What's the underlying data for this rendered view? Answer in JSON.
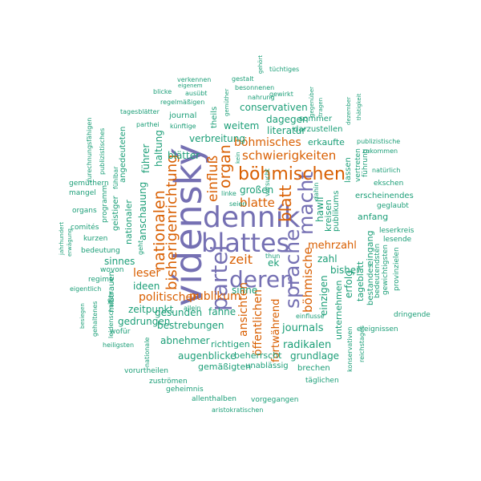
{
  "words": [
    {
      "key": "vidensky",
      "text": "vídenský"
    },
    {
      "key": "dennik",
      "text": "denník"
    },
    {
      "key": "blattes",
      "text": "blattes"
    },
    {
      "key": "partei",
      "text": "partei"
    },
    {
      "key": "deren",
      "text": "deren"
    },
    {
      "key": "sprache",
      "text": "sprache"
    },
    {
      "key": "macht",
      "text": "macht"
    },
    {
      "key": "bohmischen",
      "text": "böhmischen"
    },
    {
      "key": "blatt",
      "text": "blatt"
    },
    {
      "key": "nationalen",
      "text": "nationalen"
    },
    {
      "key": "bisherigenrichtung",
      "text": "bisherigenrichtung"
    },
    {
      "key": "organ",
      "text": "organ"
    },
    {
      "key": "einfluss",
      "text": "einfluß"
    },
    {
      "key": "bohmische",
      "text": "böhmische"
    },
    {
      "key": "schwierigkeiten",
      "text": "schwierigkeiten"
    },
    {
      "key": "bohmisches",
      "text": "böhmisches"
    },
    {
      "key": "blatte",
      "text": "blatte"
    },
    {
      "key": "zeit",
      "text": "zeit"
    },
    {
      "key": "publikum",
      "text": "publikum"
    },
    {
      "key": "politischer",
      "text": "politischer"
    },
    {
      "key": "leser",
      "text": "leser"
    },
    {
      "key": "mehrzahl",
      "text": "mehrzahl"
    },
    {
      "key": "ansichten",
      "text": "ansichten"
    },
    {
      "key": "offentlichen",
      "text": "öffentlichen"
    },
    {
      "key": "fortwahrend",
      "text": "fortwährend"
    },
    {
      "key": "journals",
      "text": "journals"
    },
    {
      "key": "radikalen",
      "text": "radikalen"
    },
    {
      "key": "grundlage",
      "text": "grundlage"
    },
    {
      "key": "weitem",
      "text": "weitem"
    },
    {
      "key": "verbreitung",
      "text": "verbreitung"
    },
    {
      "key": "literatur",
      "text": "literatur"
    },
    {
      "key": "dagegen",
      "text": "dagegen"
    },
    {
      "key": "conservativen",
      "text": "conservativen"
    },
    {
      "key": "erkaufte",
      "text": "erkaufte"
    },
    {
      "key": "darzustellen",
      "text": "darzustellen"
    },
    {
      "key": "sommer",
      "text": "sommer"
    },
    {
      "key": "grossen",
      "text": "großen"
    },
    {
      "key": "blatter",
      "text": "blätter"
    },
    {
      "key": "haltung",
      "text": "haltung"
    },
    {
      "key": "fuhrer",
      "text": "führer"
    },
    {
      "key": "anschauung",
      "text": "anschauung"
    },
    {
      "key": "sinnes",
      "text": "sinnes"
    },
    {
      "key": "ideen",
      "text": "ideen"
    },
    {
      "key": "zeitpunkt",
      "text": "zeitpunkt"
    },
    {
      "key": "gedrungen",
      "text": "gedrungen"
    },
    {
      "key": "gesunden",
      "text": "gesunden"
    },
    {
      "key": "fahne",
      "text": "fahne"
    },
    {
      "key": "bestrebungen",
      "text": "bestrebungen"
    },
    {
      "key": "abnehmer",
      "text": "abnehmer"
    },
    {
      "key": "richtigen",
      "text": "richtigen"
    },
    {
      "key": "augenblicke",
      "text": "augenblicke"
    },
    {
      "key": "beherrscht",
      "text": "beherrscht"
    },
    {
      "key": "gemassigten",
      "text": "gemäßigten"
    },
    {
      "key": "unablassig",
      "text": "unablässig"
    },
    {
      "key": "brechen",
      "text": "brechen"
    },
    {
      "key": "taglichen",
      "text": "täglichen"
    },
    {
      "key": "einfluss2",
      "text": "einflusse"
    },
    {
      "key": "sinne",
      "text": "sinne"
    },
    {
      "key": "ek",
      "text": "ek"
    },
    {
      "key": "thun",
      "text": "thun"
    },
    {
      "key": "zahl",
      "text": "zahl"
    },
    {
      "key": "bisher",
      "text": "bisher"
    },
    {
      "key": "einzigen",
      "text": "einzigen"
    },
    {
      "key": "unternehmen",
      "text": "unternehmen"
    },
    {
      "key": "erfolg",
      "text": "erfolg"
    },
    {
      "key": "hawli",
      "text": "hawlí"
    },
    {
      "key": "kreisen",
      "text": "kreisen"
    },
    {
      "key": "publikums",
      "text": "publikums"
    },
    {
      "key": "anfang",
      "text": "anfang"
    },
    {
      "key": "eingang",
      "text": "eingang"
    },
    {
      "key": "tageblatt",
      "text": "tageblatt"
    },
    {
      "key": "bestandes",
      "text": "bestandes"
    },
    {
      "key": "erscheinendes",
      "text": "erscheinendes"
    },
    {
      "key": "geglaubt",
      "text": "geglaubt"
    },
    {
      "key": "leserkreis",
      "text": "leserkreis"
    },
    {
      "key": "lesende",
      "text": "lesende"
    },
    {
      "key": "bedeutendsten",
      "text": "bedeutendsten"
    },
    {
      "key": "gewichtigsten",
      "text": "gewichtigsten"
    },
    {
      "key": "provinzielen",
      "text": "provinzielen"
    },
    {
      "key": "dringende",
      "text": "dringende"
    },
    {
      "key": "ereignissen",
      "text": "ereignissen"
    },
    {
      "key": "konservativen",
      "text": "konservativen"
    },
    {
      "key": "reichstages",
      "text": "reichstages"
    },
    {
      "key": "lassen",
      "text": "lassen"
    },
    {
      "key": "vertreten",
      "text": "vertreten"
    },
    {
      "key": "fuhrung",
      "text": "führung"
    },
    {
      "key": "zukommen",
      "text": "zukommen"
    },
    {
      "key": "naturlich",
      "text": "natürlich"
    },
    {
      "key": "ekschen",
      "text": "ekschen"
    },
    {
      "key": "publizistische",
      "text": "publizistische"
    },
    {
      "key": "dezember",
      "text": "dezember"
    },
    {
      "key": "thatigkeit",
      "text": "thätigkeit"
    },
    {
      "key": "gegenuber",
      "text": "gegenüber"
    },
    {
      "key": "tragen",
      "text": "tragen"
    },
    {
      "key": "tuchtiges",
      "text": "tüchtiges"
    },
    {
      "key": "gehort",
      "text": "gehört"
    },
    {
      "key": "gestalt",
      "text": "gestalt"
    },
    {
      "key": "besonnenen",
      "text": "besonnenen"
    },
    {
      "key": "gewirkt",
      "text": "gewirkt"
    },
    {
      "key": "nahrung",
      "text": "nahrung"
    },
    {
      "key": "verkennen",
      "text": "verkennen"
    },
    {
      "key": "eigenem",
      "text": "eigenem"
    },
    {
      "key": "blicke",
      "text": "blicke"
    },
    {
      "key": "ausubt",
      "text": "ausübt"
    },
    {
      "key": "regelmassigen",
      "text": "regelmäßigen"
    },
    {
      "key": "gemuther",
      "text": "gemüther"
    },
    {
      "key": "tagesblatter",
      "text": "tagesblätter"
    },
    {
      "key": "journal",
      "text": "journal"
    },
    {
      "key": "parthei",
      "text": "parthei"
    },
    {
      "key": "kunftige",
      "text": "künftige"
    },
    {
      "key": "theils",
      "text": "theils"
    },
    {
      "key": "zurechnungsfahigen",
      "text": "zurechnungsfähigen"
    },
    {
      "key": "publizistisches",
      "text": "publizistisches"
    },
    {
      "key": "fuhlbar",
      "text": "fühlbar"
    },
    {
      "key": "programm",
      "text": "programm"
    },
    {
      "key": "angedeuteten",
      "text": "angedeuteten"
    },
    {
      "key": "geistiger",
      "text": "geistiger"
    },
    {
      "key": "nationaler",
      "text": "nationaler"
    },
    {
      "key": "gemuthern",
      "text": "gemüthern"
    },
    {
      "key": "mangel",
      "text": "mangel"
    },
    {
      "key": "organs",
      "text": "organs"
    },
    {
      "key": "comites",
      "text": "comités"
    },
    {
      "key": "kurzen",
      "text": "kurzen"
    },
    {
      "key": "bedeutung",
      "text": "bedeutung"
    },
    {
      "key": "wovon",
      "text": "wovon"
    },
    {
      "key": "eigentlich",
      "text": "eigentlich"
    },
    {
      "key": "misstrauen",
      "text": "mißtrauen"
    },
    {
      "key": "jahrhundert",
      "text": "jahrhundert"
    },
    {
      "key": "erwagung",
      "text": "erwägung"
    },
    {
      "key": "regime",
      "text": "regime"
    },
    {
      "key": "besiegen",
      "text": "besiegen"
    },
    {
      "key": "gehaltenes",
      "text": "gehaltenes"
    },
    {
      "key": "leidenschaften",
      "text": "leidenschaften"
    },
    {
      "key": "wofur",
      "text": "wofür"
    },
    {
      "key": "heiligsten",
      "text": "heiligsten"
    },
    {
      "key": "geht",
      "text": "geht"
    },
    {
      "key": "nationale",
      "text": "nationale"
    },
    {
      "key": "allein",
      "text": "allein"
    },
    {
      "key": "vorurtheilen",
      "text": "vorurtheilen"
    },
    {
      "key": "zustromen",
      "text": "zuströmen"
    },
    {
      "key": "geheimnis",
      "text": "geheimnis"
    },
    {
      "key": "allenthalben",
      "text": "allenthalben"
    },
    {
      "key": "vorgegangen",
      "text": "vorgegangen"
    },
    {
      "key": "aristokratischen",
      "text": "aristokratischen"
    },
    {
      "key": "dahin",
      "text": "dahin"
    },
    {
      "key": "linke",
      "text": "linke"
    },
    {
      "key": "seien",
      "text": "seien"
    },
    {
      "key": "versucht",
      "text": "versucht"
    },
    {
      "key": "kein",
      "text": "kein"
    }
  ]
}
